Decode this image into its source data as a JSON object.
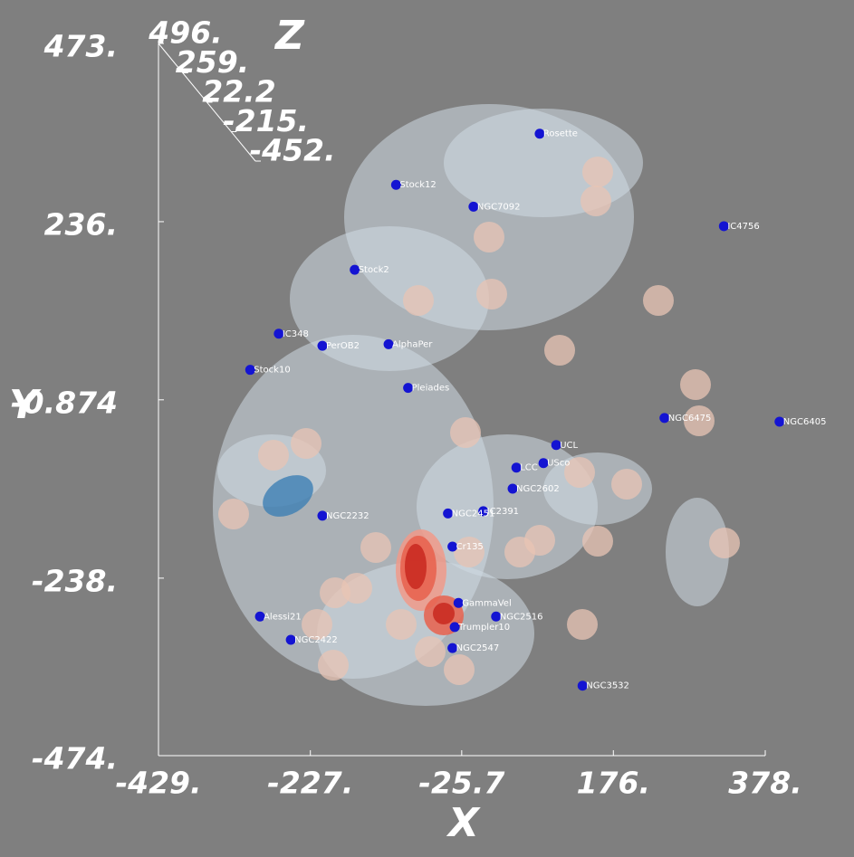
{
  "chart_data": {
    "type": "scatter",
    "x_label": "X",
    "y_label": "Y",
    "z_label": "Z",
    "xlim": [
      -429,
      378
    ],
    "xticks": [
      {
        "value": -429,
        "label": "-429."
      },
      {
        "value": -227,
        "label": "-227."
      },
      -25.7,
      {
        "value": 176,
        "label": "176."
      },
      {
        "value": 378,
        "label": "378."
      }
    ],
    "ylim": [
      -474,
      473
    ],
    "yticks": [
      {
        "value": 473,
        "label": "473."
      },
      {
        "value": 236,
        "label": "236."
      },
      -0.874,
      {
        "value": -238,
        "label": "-238."
      },
      {
        "value": -474,
        "label": "-474."
      }
    ],
    "zlim": [
      496,
      -452
    ],
    "zticks": [
      {
        "value": 496,
        "label": "496."
      },
      {
        "value": 259,
        "label": "259."
      },
      22.2,
      {
        "value": -215,
        "label": "-215."
      },
      {
        "value": -452,
        "label": "-452."
      }
    ],
    "color": "#1414d2",
    "point_labels": [
      "Rosette",
      "Stock12",
      "NGC7092",
      "IC4756",
      "Stock2",
      "IC348",
      "PerOB2",
      "AlphaPer",
      "Stock10",
      "Pleiades",
      "NGC6475",
      "NGC6405",
      "UCL",
      "USco",
      "LCC",
      "NGC2602",
      "IC2391",
      "NGC2232",
      "NGC2451",
      "Cr135",
      "GammaVel",
      "NGC2516",
      "Trumpler10",
      "NGC2547",
      "Alessi21",
      "NGC2422",
      "NGC3532"
    ],
    "x": [
      78,
      -113,
      -10,
      323,
      -168,
      -269,
      -211,
      -123,
      -307,
      -97,
      244,
      397,
      100,
      83,
      47,
      42,
      3,
      -211,
      -44,
      -38,
      -30,
      20,
      -35,
      -38,
      -294,
      -253,
      135
    ],
    "values": [
      353,
      285,
      256,
      230,
      172,
      87,
      71,
      73,
      39,
      15,
      -25,
      -30,
      -61,
      -85,
      -91,
      -119,
      -149,
      -155,
      -152,
      -196,
      -271,
      -289,
      -303,
      -331,
      -289,
      -320,
      -381
    ]
  }
}
